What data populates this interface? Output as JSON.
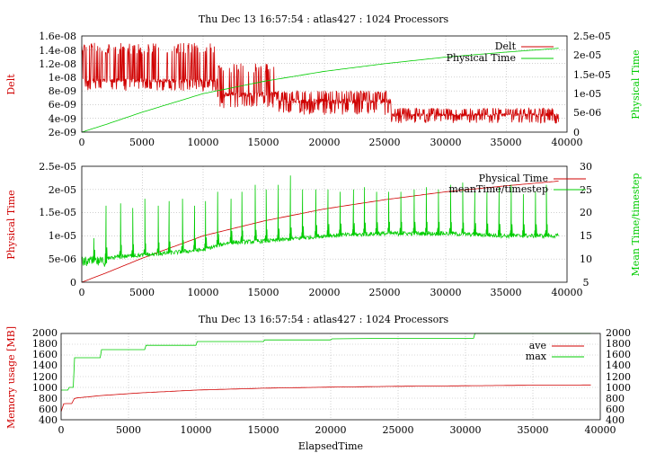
{
  "colors": {
    "red": "#d00000",
    "green": "#00cc00",
    "grid": "#b5b5b5"
  },
  "chart_data": [
    {
      "type": "line",
      "title": "Thu Dec 13 16:57:54 : atlas427 : 1024 Processors",
      "xlabel": "",
      "ylabel": "Delt",
      "ylabel_right": "Physical Time",
      "xlim": [
        0,
        40000
      ],
      "ylim": [
        2e-09,
        1.6e-08
      ],
      "ylim_right": [
        0,
        2.5e-05
      ],
      "grid": true,
      "legend": "top-right",
      "x_ticks": [
        "0",
        "5000",
        "10000",
        "15000",
        "20000",
        "25000",
        "30000",
        "35000",
        "40000"
      ],
      "y_ticks": [
        "2e-09",
        "4e-09",
        "6e-09",
        "8e-09",
        "1e-08",
        "1.2e-08",
        "1.4e-08",
        "1.6e-08"
      ],
      "y_ticks_right": [
        "0",
        "5e-06",
        "1e-05",
        "1.5e-05",
        "2e-05",
        "2.5e-05"
      ],
      "series": [
        {
          "name": "Delt",
          "axis": "left",
          "color": "#d00000",
          "style": "noisy",
          "segments": [
            {
              "x0": 0,
              "x1": 11200,
              "base": 9.5e-09,
              "low": 8e-09,
              "high": 1.5e-08
            },
            {
              "x0": 11200,
              "x1": 16000,
              "base": 7.5e-09,
              "low": 5.5e-09,
              "high": 1.2e-08
            },
            {
              "x0": 16000,
              "x1": 25500,
              "base": 6.5e-09,
              "low": 4.5e-09,
              "high": 8e-09
            },
            {
              "x0": 25500,
              "x1": 39300,
              "base": 4.5e-09,
              "low": 3.3e-09,
              "high": 5.5e-09
            }
          ]
        },
        {
          "name": "Physical Time",
          "axis": "right",
          "color": "#00cc00",
          "x": [
            0,
            2000,
            5000,
            10000,
            15000,
            20000,
            25000,
            30000,
            35000,
            39300
          ],
          "y": [
            0,
            2e-06,
            5.2e-06,
            1e-05,
            1.32e-05,
            1.58e-05,
            1.78e-05,
            1.95e-05,
            2.08e-05,
            2.18e-05
          ]
        }
      ]
    },
    {
      "type": "line",
      "title": "",
      "xlabel": "",
      "ylabel": "Physical Time",
      "ylabel_right": "Mean Time/timestep",
      "xlim": [
        0,
        40000
      ],
      "ylim": [
        0,
        2.5e-05
      ],
      "ylim_right": [
        5,
        30
      ],
      "grid": true,
      "legend": "top-right",
      "x_ticks": [
        "0",
        "5000",
        "10000",
        "15000",
        "20000",
        "25000",
        "30000",
        "35000",
        "40000"
      ],
      "y_ticks": [
        "0",
        "5e-06",
        "1e-05",
        "1.5e-05",
        "2e-05",
        "2.5e-05"
      ],
      "y_ticks_right": [
        "5",
        "10",
        "15",
        "20",
        "25",
        "30"
      ],
      "series": [
        {
          "name": "Physical Time",
          "axis": "left",
          "color": "#d00000",
          "x": [
            0,
            2000,
            5000,
            10000,
            15000,
            20000,
            25000,
            30000,
            35000,
            39300
          ],
          "y": [
            0,
            2e-06,
            5.2e-06,
            1e-05,
            1.32e-05,
            1.58e-05,
            1.78e-05,
            1.95e-05,
            2.08e-05,
            2.18e-05
          ]
        },
        {
          "name": "meanTime/timestep",
          "axis": "right",
          "color": "#00cc00",
          "style": "spiky",
          "baseline": {
            "x": [
              0,
              1000,
              3000,
              6000,
              10000,
              12000,
              16000,
              20000,
              25000,
              30000,
              35000,
              39300
            ],
            "y": [
              9.5,
              9.5,
              10.5,
              11.0,
              12.0,
              13.5,
              14.0,
              15.0,
              15.5,
              15.5,
              15.0,
              15.0
            ]
          },
          "spikes_x": [
            1000,
            2000,
            3200,
            4200,
            5200,
            6300,
            7200,
            8300,
            9300,
            10200,
            11200,
            12300,
            13200,
            14300,
            15200,
            16200,
            17200,
            18200,
            19300,
            20300,
            21300,
            22400,
            23300,
            24300,
            25300,
            26300,
            27400,
            28400,
            29400,
            30400,
            31400,
            32400,
            33400,
            34400,
            35400,
            36400,
            37400,
            38300
          ],
          "spikes_y": [
            14.5,
            21.5,
            22.0,
            21.0,
            23.0,
            21.5,
            22.5,
            23.0,
            21.5,
            22.5,
            24.5,
            23.0,
            24.5,
            26.0,
            25.0,
            26.0,
            28.0,
            25.0,
            25.0,
            25.0,
            24.5,
            25.0,
            25.5,
            24.5,
            24.5,
            24.5,
            25.0,
            25.5,
            25.0,
            26.0,
            26.5,
            24.5,
            24.5,
            25.5,
            26.0,
            24.0,
            24.5,
            26.0
          ]
        }
      ]
    },
    {
      "type": "line",
      "title": "Thu Dec 13 16:57:54 : atlas427 : 1024 Processors",
      "xlabel": "ElapsedTime",
      "ylabel": "Memory usage [MB]",
      "ylabel_right": "",
      "xlim": [
        0,
        40000
      ],
      "ylim": [
        400,
        2000
      ],
      "ylim_right": [
        400,
        2000
      ],
      "grid": true,
      "legend": "top-right",
      "x_ticks": [
        "0",
        "5000",
        "10000",
        "15000",
        "20000",
        "25000",
        "30000",
        "35000",
        "40000"
      ],
      "y_ticks": [
        "400",
        "600",
        "800",
        "1000",
        "1200",
        "1400",
        "1600",
        "1800",
        "2000"
      ],
      "y_ticks_right": [
        "400",
        "600",
        "800",
        "1000",
        "1200",
        "1400",
        "1600",
        "1800",
        "2000"
      ],
      "series": [
        {
          "name": "ave",
          "axis": "left",
          "color": "#d00000",
          "x": [
            0,
            200,
            800,
            1000,
            3000,
            6000,
            10000,
            15000,
            20000,
            25000,
            30000,
            35000,
            39300
          ],
          "y": [
            550,
            700,
            700,
            800,
            850,
            900,
            950,
            985,
            1005,
            1020,
            1030,
            1040,
            1045
          ]
        },
        {
          "name": "max",
          "axis": "left",
          "color": "#00cc00",
          "style": "step",
          "x": [
            0,
            500,
            600,
            900,
            1000,
            2900,
            3000,
            6200,
            6300,
            10000,
            10100,
            15000,
            15100,
            20000,
            20100,
            25000,
            30600,
            30700,
            39300
          ],
          "y": [
            950,
            950,
            1000,
            1000,
            1550,
            1550,
            1700,
            1700,
            1780,
            1780,
            1850,
            1850,
            1880,
            1880,
            1900,
            1910,
            1910,
            2000,
            2000
          ]
        }
      ]
    }
  ]
}
